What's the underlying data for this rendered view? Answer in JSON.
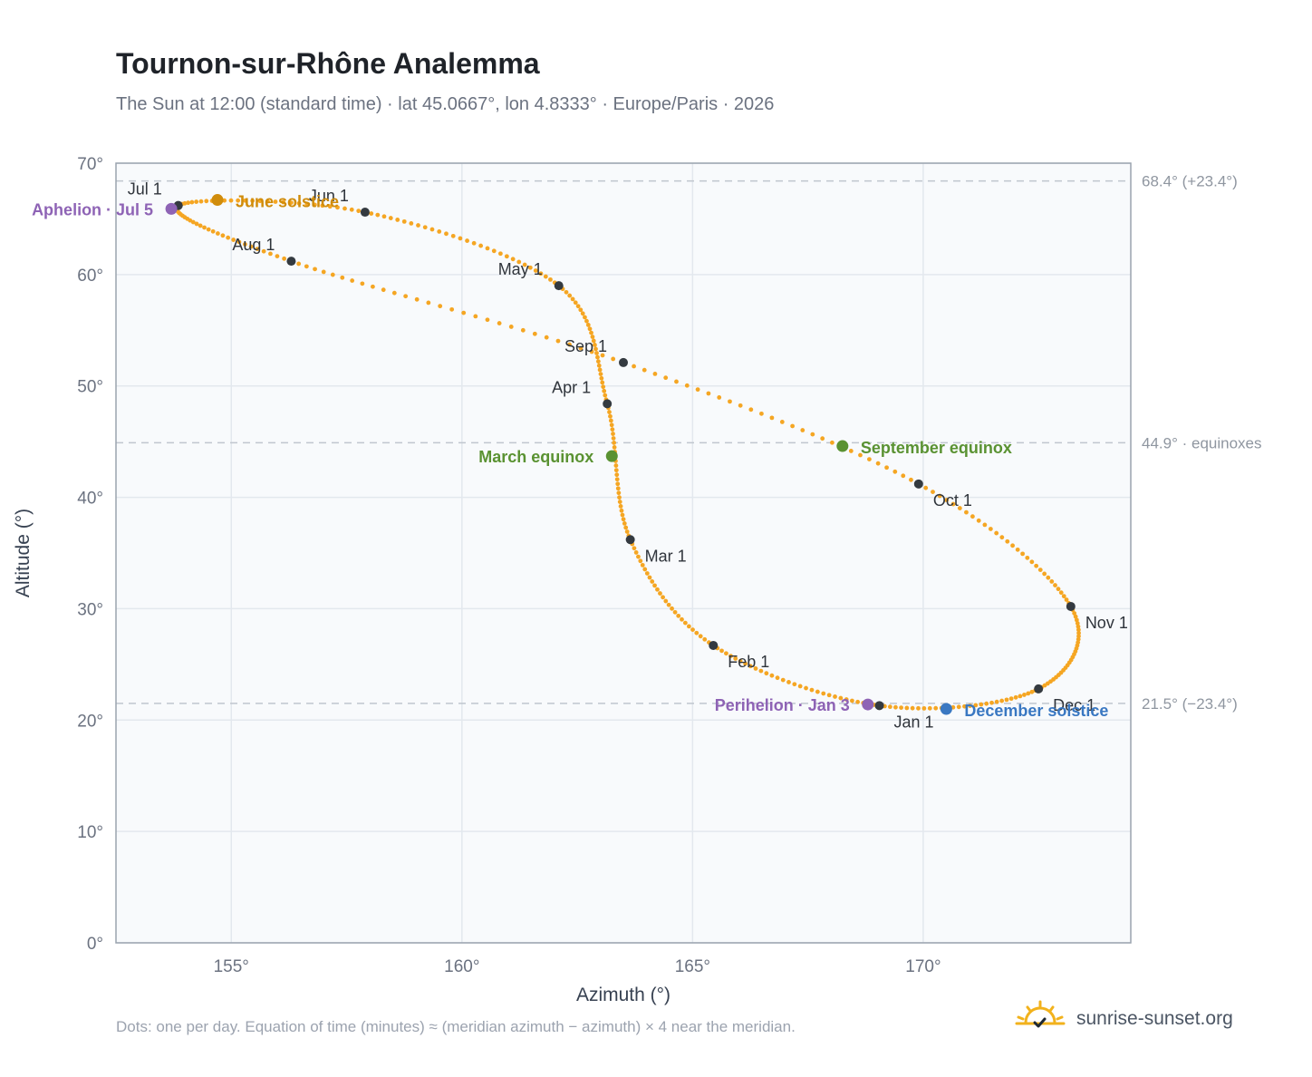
{
  "header": {
    "title": "Tournon-sur-Rhône Analemma",
    "subtitle": "The Sun at 12:00 (standard time) · lat 45.0667°, lon 4.8333° · Europe/Paris · 2026"
  },
  "footnote": "Dots: one per day. Equation of time (minutes) ≈ (meridian azimuth − azimuth) × 4 near the meridian.",
  "brand": {
    "name": "sunrise-sunset.org",
    "icon": "sun-icon"
  },
  "colors": {
    "curve": "#f5a623",
    "month_marker": "#343a40",
    "june_solstice": "#d08c0b",
    "december_solstice": "#3a78c2",
    "equinox": "#5a9232",
    "apsis": "#8e63b5",
    "plot_bg": "#f8fafc",
    "grid": "#e3e8ee",
    "frame": "#9aa3ae",
    "ref_line": "#c0c6ce"
  },
  "chart_data": {
    "type": "scatter",
    "title": "Tournon-sur-Rhône Analemma",
    "xlabel": "Azimuth (°)",
    "ylabel": "Altitude (°)",
    "xlim": [
      152.5,
      174.5
    ],
    "ylim": [
      0,
      70
    ],
    "x_ticks": [
      155,
      160,
      165,
      170
    ],
    "x_tick_labels": [
      "155°",
      "160°",
      "165°",
      "170°"
    ],
    "y_ticks": [
      0,
      10,
      20,
      30,
      40,
      50,
      60,
      70
    ],
    "y_tick_labels": [
      "0°",
      "10°",
      "20°",
      "30°",
      "40°",
      "50°",
      "60°",
      "70°"
    ],
    "grid": true,
    "series": [
      {
        "points_per_day": true,
        "month_markers": [
          {
            "label": "Jan 1",
            "x": 169.05,
            "y": 21.3
          },
          {
            "label": "Feb 1",
            "x": 165.45,
            "y": 26.7
          },
          {
            "label": "Mar 1",
            "x": 163.65,
            "y": 36.2
          },
          {
            "label": "Apr 1",
            "x": 163.15,
            "y": 48.4
          },
          {
            "label": "May 1",
            "x": 162.1,
            "y": 59.0
          },
          {
            "label": "Jun 1",
            "x": 157.9,
            "y": 65.6
          },
          {
            "label": "Jul 1",
            "x": 153.85,
            "y": 66.2
          },
          {
            "label": "Aug 1",
            "x": 156.3,
            "y": 61.2
          },
          {
            "label": "Sep 1",
            "x": 163.5,
            "y": 52.1
          },
          {
            "label": "Oct 1",
            "x": 169.9,
            "y": 41.2
          },
          {
            "label": "Nov 1",
            "x": 173.2,
            "y": 30.2
          },
          {
            "label": "Dec 1",
            "x": 172.5,
            "y": 22.8
          }
        ]
      }
    ],
    "events": [
      {
        "label": "June solstice",
        "x": 154.7,
        "y": 66.7,
        "kind": "june_solstice"
      },
      {
        "label": "Aphelion · Jul 5",
        "x": 153.7,
        "y": 65.9,
        "kind": "apsis"
      },
      {
        "label": "March equinox",
        "x": 163.25,
        "y": 43.7,
        "kind": "equinox"
      },
      {
        "label": "September equinox",
        "x": 168.25,
        "y": 44.6,
        "kind": "equinox"
      },
      {
        "label": "Perihelion · Jan 3",
        "x": 168.8,
        "y": 21.4,
        "kind": "apsis"
      },
      {
        "label": "December solstice",
        "x": 170.5,
        "y": 21.0,
        "kind": "december_solstice"
      }
    ],
    "reference_lines": [
      {
        "y": 68.4,
        "label": "68.4° (+23.4°)"
      },
      {
        "y": 44.9,
        "label": "44.9° · equinoxes"
      },
      {
        "y": 21.5,
        "label": "21.5° (−23.4°)"
      }
    ]
  }
}
